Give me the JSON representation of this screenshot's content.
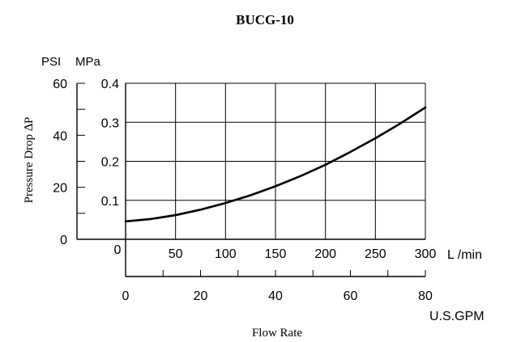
{
  "chart_data": {
    "type": "line",
    "title": "BUCG-10",
    "xlabel": "Flow Rate",
    "ylabel": "Pressure Drop ∆P",
    "x_axis_primary": {
      "unit": "L /min",
      "range": [
        0,
        300
      ],
      "ticks": [
        "0",
        "50",
        "100",
        "150",
        "200",
        "250",
        "300"
      ]
    },
    "x_axis_secondary": {
      "unit": "U.S.GPM",
      "range": [
        0,
        80
      ],
      "ticks": [
        "0",
        "20",
        "40",
        "60",
        "80"
      ]
    },
    "y_axis_primary": {
      "unit": "MPa",
      "range": [
        0,
        0.4
      ],
      "ticks": [
        "0.1",
        "0.2",
        "0.3",
        "0.4"
      ]
    },
    "y_axis_secondary": {
      "unit": "PSI",
      "range": [
        0,
        60
      ],
      "ticks": [
        "0",
        "20",
        "40",
        "60"
      ]
    },
    "grid": true,
    "series": [
      {
        "x": [
          0,
          25,
          50,
          75,
          100,
          125,
          150,
          175,
          200,
          225,
          250,
          275,
          300
        ],
        "y": [
          0.046,
          0.052,
          0.062,
          0.076,
          0.093,
          0.113,
          0.136,
          0.162,
          0.191,
          0.224,
          0.259,
          0.297,
          0.338
        ]
      }
    ]
  }
}
